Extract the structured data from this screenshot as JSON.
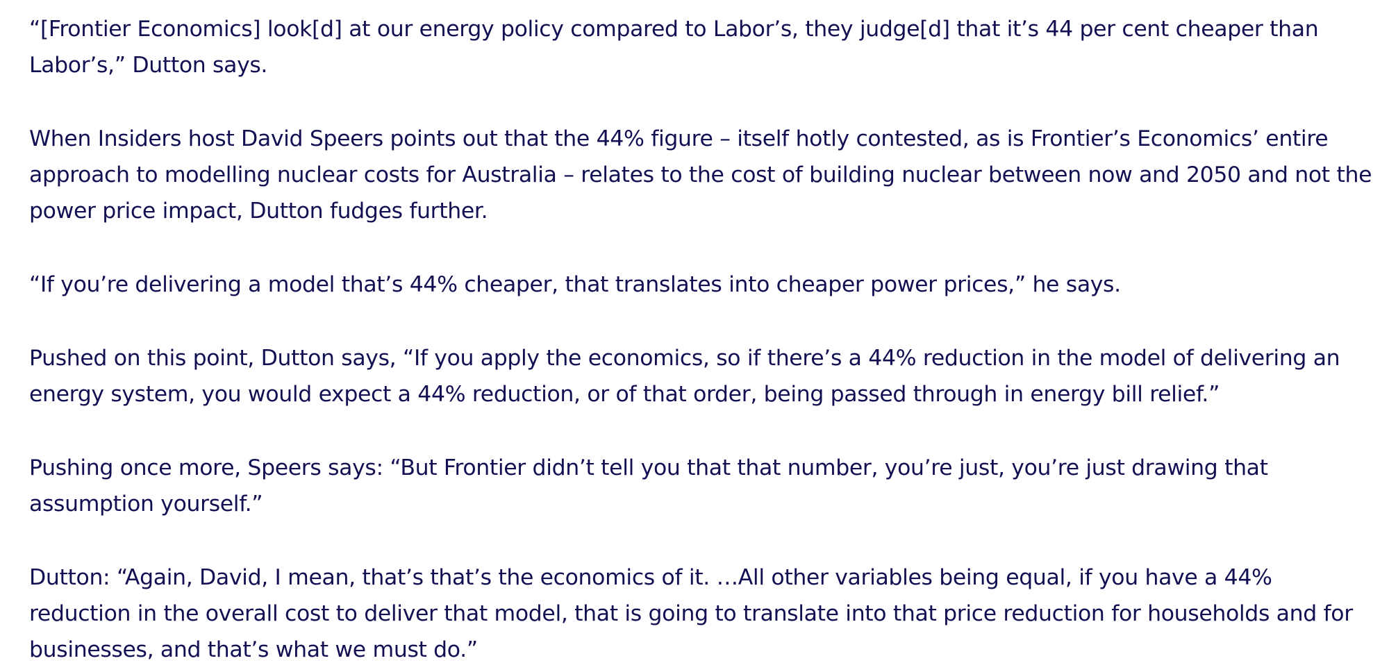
{
  "article": {
    "paragraphs": [
      "“[Frontier Economics] look[d] at our energy policy compared to Labor’s, they judge[d] that it’s 44 per cent cheaper than Labor’s,” Dutton says.",
      "When Insiders host David Speers points out that the 44% figure – itself hotly contested, as is Frontier’s Economics’ entire approach to modelling nuclear costs for Australia – relates to the cost of building nuclear between now and 2050 and not the power price impact, Dutton fudges further.",
      "“If you’re delivering a model that’s 44% cheaper, that translates into cheaper power prices,” he says.",
      "Pushed on this point, Dutton says, “If you apply the economics, so if there’s a 44% reduction in the model of delivering an energy system, you would expect a 44% reduction, or of that order, being passed through in energy bill relief.”",
      "Pushing once more, Speers says: “But Frontier didn’t tell you that that number, you’re just, you’re just drawing that assumption yourself.”",
      "Dutton: “Again, David, I mean, that’s that’s the economics of it. …All other variables being equal, if you have a 44% reduction in the overall cost to deliver that model, that is going to translate into that price reduction for households and for businesses, and that’s what we must do.”"
    ],
    "text_color": "#121052",
    "background_color": "#ffffff"
  }
}
